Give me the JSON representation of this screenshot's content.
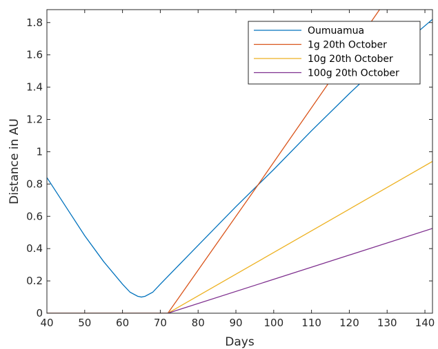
{
  "chart_data": {
    "type": "line",
    "title": "",
    "xlabel": "Days",
    "ylabel": "Distance in AU",
    "xlim": [
      40,
      142
    ],
    "ylim": [
      0,
      1.88
    ],
    "xticks": [
      40,
      50,
      60,
      70,
      80,
      90,
      100,
      110,
      120,
      130,
      140
    ],
    "yticks": [
      0,
      0.2,
      0.4,
      0.6,
      0.8,
      1,
      1.2,
      1.4,
      1.6,
      1.8
    ],
    "grid": false,
    "legend_position": "top-right",
    "series": [
      {
        "name": "Oumuamua",
        "color": "#0072BD",
        "x": [
          40,
          45,
          50,
          55,
          60,
          62,
          64,
          65,
          66,
          68,
          70,
          75,
          80,
          90,
          100,
          110,
          120,
          130,
          142
        ],
        "y": [
          0.84,
          0.66,
          0.48,
          0.32,
          0.18,
          0.13,
          0.105,
          0.1,
          0.105,
          0.13,
          0.18,
          0.3,
          0.42,
          0.66,
          0.89,
          1.13,
          1.36,
          1.58,
          1.82
        ]
      },
      {
        "name": "1g 20th October",
        "color": "#D95319",
        "x": [
          40,
          72,
          96,
          128
        ],
        "y": [
          0,
          0,
          0.8,
          1.88
        ]
      },
      {
        "name": "10g 20th October",
        "color": "#EDB120",
        "x": [
          40,
          72,
          142
        ],
        "y": [
          0,
          0,
          0.94
        ]
      },
      {
        "name": "100g 20th October",
        "color": "#7E2F8E",
        "x": [
          40,
          72,
          142
        ],
        "y": [
          0,
          0,
          0.525
        ]
      }
    ]
  }
}
